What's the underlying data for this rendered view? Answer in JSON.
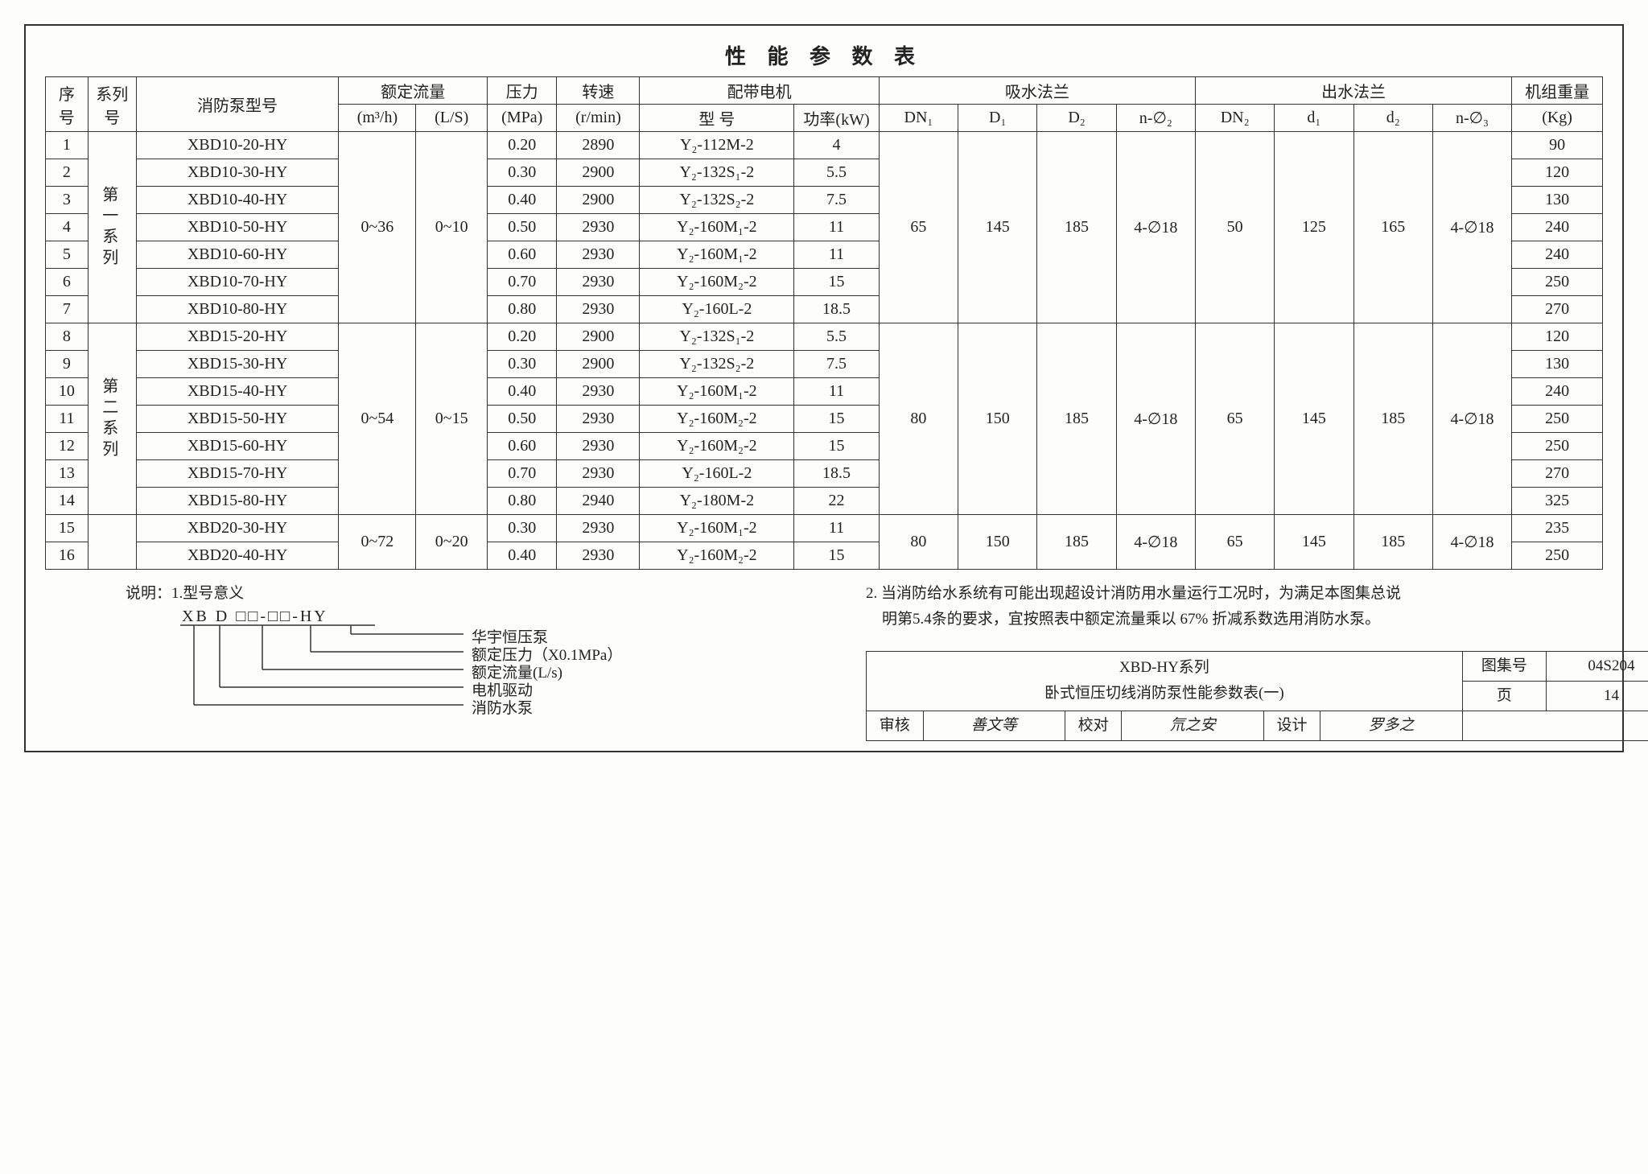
{
  "title": "性 能 参 数 表",
  "head": {
    "r1": [
      "序号",
      "系列号",
      "消防泵型号",
      "额定流量",
      "压力",
      "转速",
      "配带电机",
      "吸水法兰",
      "出水法兰",
      "机组重量"
    ],
    "r2": [
      "(m³/h)",
      "(L/S)",
      "(MPa)",
      "(r/min)",
      "型 号",
      "功率(kW)",
      "DN₁",
      "D₁",
      "D₂",
      "n-∅₂",
      "DN₂",
      "d₁",
      "d₂",
      "n-∅₃",
      "(Kg)"
    ]
  },
  "groups": [
    {
      "series": "第一系列",
      "flow_m3h": "0~36",
      "flow_ls": "0~10",
      "flange_in": {
        "DN": "65",
        "D1": "145",
        "D2": "185",
        "n": "4-∅18"
      },
      "flange_out": {
        "DN": "50",
        "d1": "125",
        "d2": "165",
        "n": "4-∅18"
      },
      "rows": [
        {
          "n": "1",
          "model": "XBD10-20-HY",
          "mpa": "0.20",
          "rpm": "2890",
          "motor": "Y₂-112M-2",
          "kw": "4",
          "kg": "90"
        },
        {
          "n": "2",
          "model": "XBD10-30-HY",
          "mpa": "0.30",
          "rpm": "2900",
          "motor": "Y₂-132S₁-2",
          "kw": "5.5",
          "kg": "120"
        },
        {
          "n": "3",
          "model": "XBD10-40-HY",
          "mpa": "0.40",
          "rpm": "2900",
          "motor": "Y₂-132S₂-2",
          "kw": "7.5",
          "kg": "130"
        },
        {
          "n": "4",
          "model": "XBD10-50-HY",
          "mpa": "0.50",
          "rpm": "2930",
          "motor": "Y₂-160M₁-2",
          "kw": "11",
          "kg": "240"
        },
        {
          "n": "5",
          "model": "XBD10-60-HY",
          "mpa": "0.60",
          "rpm": "2930",
          "motor": "Y₂-160M₁-2",
          "kw": "11",
          "kg": "240"
        },
        {
          "n": "6",
          "model": "XBD10-70-HY",
          "mpa": "0.70",
          "rpm": "2930",
          "motor": "Y₂-160M₂-2",
          "kw": "15",
          "kg": "250"
        },
        {
          "n": "7",
          "model": "XBD10-80-HY",
          "mpa": "0.80",
          "rpm": "2930",
          "motor": "Y₂-160L-2",
          "kw": "18.5",
          "kg": "270"
        }
      ]
    },
    {
      "series": "第二系列",
      "flow_m3h": "0~54",
      "flow_ls": "0~15",
      "flange_in": {
        "DN": "80",
        "D1": "150",
        "D2": "185",
        "n": "4-∅18"
      },
      "flange_out": {
        "DN": "65",
        "d1": "145",
        "d2": "185",
        "n": "4-∅18"
      },
      "rows": [
        {
          "n": "8",
          "model": "XBD15-20-HY",
          "mpa": "0.20",
          "rpm": "2900",
          "motor": "Y₂-132S₁-2",
          "kw": "5.5",
          "kg": "120"
        },
        {
          "n": "9",
          "model": "XBD15-30-HY",
          "mpa": "0.30",
          "rpm": "2900",
          "motor": "Y₂-132S₂-2",
          "kw": "7.5",
          "kg": "130"
        },
        {
          "n": "10",
          "model": "XBD15-40-HY",
          "mpa": "0.40",
          "rpm": "2930",
          "motor": "Y₂-160M₁-2",
          "kw": "11",
          "kg": "240"
        },
        {
          "n": "11",
          "model": "XBD15-50-HY",
          "mpa": "0.50",
          "rpm": "2930",
          "motor": "Y₂-160M₂-2",
          "kw": "15",
          "kg": "250"
        },
        {
          "n": "12",
          "model": "XBD15-60-HY",
          "mpa": "0.60",
          "rpm": "2930",
          "motor": "Y₂-160M₂-2",
          "kw": "15",
          "kg": "250"
        },
        {
          "n": "13",
          "model": "XBD15-70-HY",
          "mpa": "0.70",
          "rpm": "2930",
          "motor": "Y₂-160L-2",
          "kw": "18.5",
          "kg": "270"
        },
        {
          "n": "14",
          "model": "XBD15-80-HY",
          "mpa": "0.80",
          "rpm": "2940",
          "motor": "Y₂-180M-2",
          "kw": "22",
          "kg": "325"
        }
      ]
    },
    {
      "series": "",
      "flow_m3h": "0~72",
      "flow_ls": "0~20",
      "flange_in": {
        "DN": "80",
        "D1": "150",
        "D2": "185",
        "n": "4-∅18"
      },
      "flange_out": {
        "DN": "65",
        "d1": "145",
        "d2": "185",
        "n": "4-∅18"
      },
      "rows": [
        {
          "n": "15",
          "model": "XBD20-30-HY",
          "mpa": "0.30",
          "rpm": "2930",
          "motor": "Y₂-160M₁-2",
          "kw": "11",
          "kg": "235"
        },
        {
          "n": "16",
          "model": "XBD20-40-HY",
          "mpa": "0.40",
          "rpm": "2930",
          "motor": "Y₂-160M₂-2",
          "kw": "15",
          "kg": "250"
        }
      ]
    }
  ],
  "notes": {
    "lead": "说明：",
    "n1": "1.型号意义",
    "diagram_code": "XB D □□-□□-HY",
    "labels": [
      "华宇恒压泵",
      "额定压力（X0.1MPa）",
      "额定流量(L/s)",
      "电机驱动",
      "消防水泵"
    ],
    "n2a": "2. 当消防给水系统有可能出现超设计消防用水量运行工况时，为满足本图集总说",
    "n2b": "明第5.4条的要求，宜按照表中额定流量乘以 67% 折减系数选用消防水泵。"
  },
  "footer": {
    "title1": "XBD-HY系列",
    "title2": "卧式恒压切线消防泵性能参数表(一)",
    "fig_label": "图集号",
    "fig_no": "04S204",
    "review": "审核",
    "review_v": "善文等",
    "check": "校对",
    "check_v": "氘之安",
    "design": "设计",
    "design_v": "罗多之",
    "page_label": "页",
    "page_no": "14"
  },
  "colw": {
    "n": 44,
    "series": 50,
    "model": 210,
    "m3h": 80,
    "ls": 74,
    "mpa": 72,
    "rpm": 86,
    "motor": 160,
    "kw": 88,
    "f": 82,
    "kg": 94
  }
}
